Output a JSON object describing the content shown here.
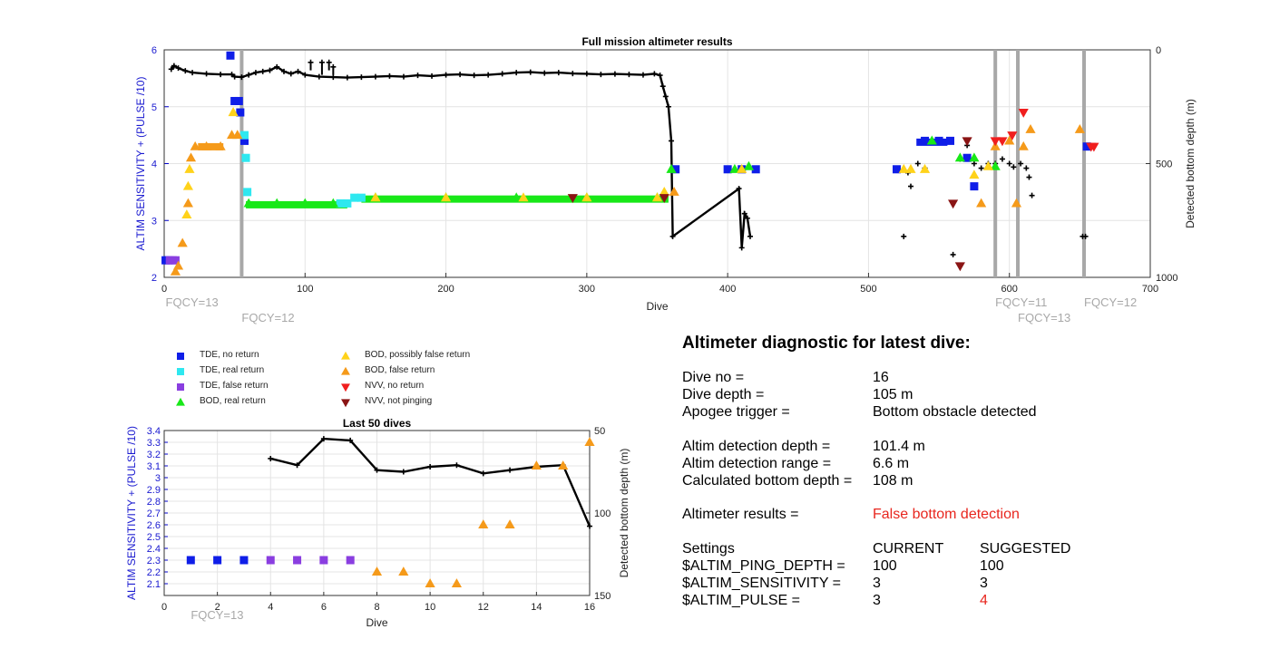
{
  "main_chart": {
    "title": "Full mission altimeter results",
    "xlabel": "Dive",
    "ylabel_left": "ALTIM SENSITIVITY + (PULSE /10)",
    "ylabel_right": "Detected bottom depth (m)",
    "xlim": [
      0,
      700
    ],
    "ylim_left": [
      2,
      6
    ],
    "ylim_right_reversed": [
      0,
      1000
    ],
    "x_ticks": [
      "0",
      "100",
      "200",
      "300",
      "400",
      "500",
      "600",
      "700"
    ],
    "y_ticks_left": [
      "2",
      "3",
      "4",
      "5",
      "6"
    ],
    "y_ticks_right": [
      "0",
      "500",
      "1000"
    ],
    "grid": true,
    "fqcy_labels": [
      {
        "text": "FQCY=13",
        "dive": 1,
        "row": 1
      },
      {
        "text": "FQCY=12",
        "dive": 55,
        "row": 2
      },
      {
        "text": "FQCY=11",
        "dive": 590,
        "row": 1
      },
      {
        "text": "FQCY=13",
        "dive": 606,
        "row": 2
      },
      {
        "text": "FQCY=12",
        "dive": 653,
        "row": 1
      }
    ],
    "fqcy_change_dives": [
      55,
      590,
      606,
      653
    ],
    "bottom_depth_series": [
      [
        5,
        85
      ],
      [
        7,
        70
      ],
      [
        10,
        80
      ],
      [
        15,
        92
      ],
      [
        20,
        100
      ],
      [
        30,
        105
      ],
      [
        40,
        108
      ],
      [
        48,
        108
      ],
      [
        50,
        118
      ],
      [
        55,
        120
      ],
      [
        60,
        110
      ],
      [
        65,
        100
      ],
      [
        70,
        95
      ],
      [
        75,
        90
      ],
      [
        80,
        75
      ],
      [
        85,
        95
      ],
      [
        90,
        105
      ],
      [
        95,
        95
      ],
      [
        100,
        110
      ],
      [
        110,
        118
      ],
      [
        120,
        120
      ],
      [
        130,
        122
      ],
      [
        140,
        120
      ],
      [
        150,
        118
      ],
      [
        160,
        115
      ],
      [
        170,
        118
      ],
      [
        180,
        112
      ],
      [
        190,
        115
      ],
      [
        200,
        110
      ],
      [
        210,
        108
      ],
      [
        220,
        112
      ],
      [
        230,
        110
      ],
      [
        240,
        105
      ],
      [
        250,
        100
      ],
      [
        260,
        98
      ],
      [
        270,
        102
      ],
      [
        280,
        100
      ],
      [
        290,
        104
      ],
      [
        300,
        105
      ],
      [
        310,
        108
      ],
      [
        320,
        106
      ],
      [
        330,
        108
      ],
      [
        340,
        110
      ],
      [
        348,
        105
      ],
      [
        352,
        112
      ],
      [
        354,
        160
      ],
      [
        356,
        205
      ],
      [
        358,
        250
      ],
      [
        360,
        400
      ],
      [
        361,
        820
      ],
      [
        408,
        610
      ],
      [
        410,
        870
      ],
      [
        412,
        720
      ],
      [
        414,
        740
      ],
      [
        416,
        820
      ]
    ],
    "bottom_depth_spikes": [
      [
        104,
        90,
        55
      ],
      [
        112,
        110,
        55
      ],
      [
        117,
        90,
        55
      ],
      [
        120,
        110,
        75
      ]
    ],
    "bottom_depth_scatter": [
      [
        525,
        820
      ],
      [
        528,
        540
      ],
      [
        530,
        600
      ],
      [
        535,
        500
      ],
      [
        540,
        520
      ],
      [
        560,
        900
      ],
      [
        565,
        480
      ],
      [
        570,
        420
      ],
      [
        575,
        500
      ],
      [
        580,
        520
      ],
      [
        585,
        500
      ],
      [
        590,
        500
      ],
      [
        595,
        480
      ],
      [
        600,
        500
      ],
      [
        603,
        515
      ],
      [
        608,
        500
      ],
      [
        612,
        520
      ],
      [
        614,
        560
      ],
      [
        616,
        640
      ],
      [
        652,
        820
      ],
      [
        654,
        820
      ]
    ],
    "markers": {
      "tde_no_return": [
        [
          1,
          2.3
        ],
        [
          3,
          2.3
        ],
        [
          47,
          5.9
        ],
        [
          50,
          5.1
        ],
        [
          53,
          5.1
        ],
        [
          54,
          4.9
        ],
        [
          57,
          4.4
        ],
        [
          363,
          3.9
        ],
        [
          400,
          3.9
        ],
        [
          410,
          3.9
        ],
        [
          420,
          3.9
        ],
        [
          520,
          3.9
        ],
        [
          540,
          4.4
        ],
        [
          550,
          4.4
        ],
        [
          558,
          4.4
        ],
        [
          570,
          4.1
        ],
        [
          575,
          3.6
        ],
        [
          655,
          4.3
        ]
      ],
      "tde_real_return": [
        [
          57,
          4.5
        ],
        [
          58,
          4.1
        ],
        [
          59,
          3.5
        ],
        [
          125,
          3.3
        ],
        [
          130,
          3.3
        ],
        [
          135,
          3.4
        ],
        [
          140,
          3.4
        ]
      ],
      "tde_false_return": [
        [
          4,
          2.3
        ],
        [
          6,
          2.3
        ],
        [
          8,
          2.3
        ]
      ],
      "bod_real_return": [
        [
          60,
          3.3
        ],
        [
          80,
          3.3
        ],
        [
          100,
          3.3
        ],
        [
          120,
          3.3
        ],
        [
          150,
          3.4
        ],
        [
          200,
          3.4
        ],
        [
          250,
          3.4
        ],
        [
          300,
          3.4
        ],
        [
          350,
          3.4
        ],
        [
          360,
          3.9
        ],
        [
          405,
          3.9
        ],
        [
          415,
          3.95
        ],
        [
          545,
          4.4
        ],
        [
          565,
          4.1
        ],
        [
          575,
          4.1
        ],
        [
          590,
          3.95
        ]
      ],
      "bod_possibly_false_return": [
        [
          16,
          3.1
        ],
        [
          17,
          3.6
        ],
        [
          18,
          3.9
        ],
        [
          49,
          4.9
        ],
        [
          150,
          3.4
        ],
        [
          200,
          3.4
        ],
        [
          255,
          3.4
        ],
        [
          300,
          3.4
        ],
        [
          350,
          3.4
        ],
        [
          355,
          3.5
        ],
        [
          410,
          3.9
        ],
        [
          525,
          3.9
        ],
        [
          530,
          3.9
        ],
        [
          540,
          3.9
        ],
        [
          575,
          3.8
        ],
        [
          585,
          3.95
        ]
      ],
      "bod_false_return": [
        [
          8,
          2.1
        ],
        [
          10,
          2.2
        ],
        [
          13,
          2.6
        ],
        [
          17,
          3.3
        ],
        [
          19,
          4.1
        ],
        [
          22,
          4.3
        ],
        [
          30,
          4.3
        ],
        [
          40,
          4.3
        ],
        [
          48,
          4.5
        ],
        [
          52,
          4.5
        ],
        [
          362,
          3.5
        ],
        [
          580,
          3.3
        ],
        [
          590,
          4.3
        ],
        [
          600,
          4.4
        ],
        [
          605,
          3.3
        ],
        [
          610,
          4.3
        ],
        [
          615,
          4.6
        ],
        [
          650,
          4.6
        ]
      ],
      "nvv_no_return": [
        [
          610,
          4.9
        ],
        [
          590,
          4.4
        ],
        [
          595,
          4.4
        ],
        [
          602,
          4.5
        ],
        [
          658,
          4.3
        ],
        [
          660,
          4.3
        ]
      ],
      "nvv_not_pinging": [
        [
          290,
          3.4
        ],
        [
          355,
          3.4
        ],
        [
          560,
          3.3
        ],
        [
          565,
          2.2
        ],
        [
          570,
          4.4
        ]
      ]
    }
  },
  "legend": {
    "items": [
      {
        "label": "TDE, no return",
        "shape": "square",
        "color": "#0f1ee8"
      },
      {
        "label": "TDE, real return",
        "shape": "square",
        "color": "#2ee8f0"
      },
      {
        "label": "TDE, false return",
        "shape": "square",
        "color": "#8a3ee0"
      },
      {
        "label": "BOD, real return",
        "shape": "triangle-up",
        "color": "#18e818"
      },
      {
        "label": "BOD, possibly false return",
        "shape": "triangle-up",
        "color": "#ffd21a"
      },
      {
        "label": "BOD, false return",
        "shape": "triangle-up",
        "color": "#f59a1a"
      },
      {
        "label": "NVV, no return",
        "shape": "triangle-down",
        "color": "#f01e1e"
      },
      {
        "label": "NVV, not pinging",
        "shape": "triangle-down",
        "color": "#8a1414"
      }
    ]
  },
  "last_chart": {
    "title": "Last 50 dives",
    "xlabel": "Dive",
    "ylabel_left": "ALTIM SENSITIVITY + (PULSE /10)",
    "ylabel_right": "Detected bottom depth (m)",
    "xlim": [
      0,
      16
    ],
    "ylim_left": [
      2,
      3.4
    ],
    "ylim_right_reversed": [
      50,
      150
    ],
    "x_ticks": [
      "0",
      "2",
      "4",
      "6",
      "8",
      "10",
      "12",
      "14",
      "16"
    ],
    "y_ticks_left": [
      "2.1",
      "2.2",
      "2.3",
      "2.4",
      "2.5",
      "2.6",
      "2.7",
      "2.8",
      "2.9",
      "3",
      "3.1",
      "3.2",
      "3.3",
      "3.4"
    ],
    "y_ticks_right": [
      "50",
      "100",
      "150"
    ],
    "grid": true,
    "fqcy_label": "FQCY=13",
    "bottom_depth": [
      [
        4,
        67
      ],
      [
        5,
        71
      ],
      [
        6,
        55
      ],
      [
        7,
        56
      ],
      [
        8,
        74
      ],
      [
        9,
        75
      ],
      [
        10,
        72
      ],
      [
        11,
        71
      ],
      [
        12,
        76
      ],
      [
        13,
        74
      ],
      [
        14,
        72
      ],
      [
        15,
        71
      ],
      [
        16,
        108
      ]
    ],
    "markers": {
      "tde_no_return": [
        [
          1,
          2.3
        ],
        [
          2,
          2.3
        ],
        [
          3,
          2.3
        ]
      ],
      "tde_false_return": [
        [
          4,
          2.3
        ],
        [
          5,
          2.3
        ],
        [
          6,
          2.3
        ],
        [
          7,
          2.3
        ]
      ],
      "bod_false_return": [
        [
          8,
          2.2
        ],
        [
          9,
          2.2
        ],
        [
          10,
          2.1
        ],
        [
          11,
          2.1
        ],
        [
          12,
          2.6
        ],
        [
          13,
          2.6
        ],
        [
          14,
          3.1
        ],
        [
          15,
          3.1
        ],
        [
          16,
          3.3
        ]
      ]
    }
  },
  "diagnostic": {
    "title": "Altimeter diagnostic for latest dive:",
    "rows": [
      {
        "key": "Dive no =",
        "value": "16"
      },
      {
        "key": "Dive depth =",
        "value": "105 m"
      },
      {
        "key": "Apogee trigger =",
        "value": "Bottom obstacle detected"
      },
      {
        "key": "Altim detection depth =",
        "value": "101.4 m"
      },
      {
        "key": "Altim detection range =",
        "value": "6.6 m"
      },
      {
        "key": "Calculated bottom depth =",
        "value": "108 m"
      },
      {
        "key": "Altimeter results =",
        "value": "False bottom detection"
      }
    ],
    "settings_header": {
      "key": "Settings",
      "current": "CURRENT",
      "suggested": "SUGGESTED"
    },
    "settings": [
      {
        "key": "$ALTIM_PING_DEPTH =",
        "current": "100",
        "suggested": "100"
      },
      {
        "key": "$ALTIM_SENSITIVITY =",
        "current": "3",
        "suggested": "3"
      },
      {
        "key": "$ALTIM_PULSE =",
        "current": "3",
        "suggested": "4"
      }
    ]
  }
}
